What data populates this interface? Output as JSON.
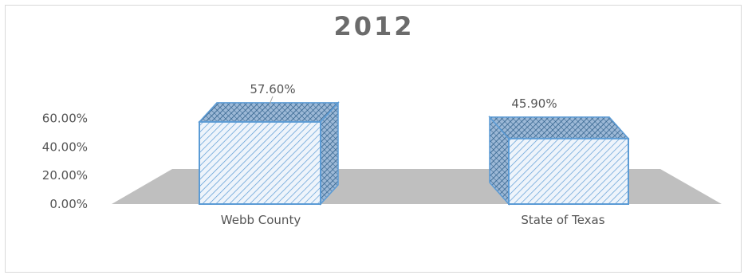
{
  "chart_data": {
    "type": "bar",
    "title": "2012",
    "categories": [
      "Webb County",
      "State of Texas"
    ],
    "values": [
      57.6,
      45.9
    ],
    "data_labels": [
      "57.60%",
      "45.90%"
    ],
    "yticks": [
      "0.00%",
      "20.00%",
      "40.00%",
      "60.00%"
    ],
    "ylim": [
      0,
      60
    ],
    "legend": "none",
    "grid": false,
    "colors": {
      "fill": "#dce9f6",
      "edge": "#5b9bd5",
      "floor": "#bfbfbf"
    }
  }
}
